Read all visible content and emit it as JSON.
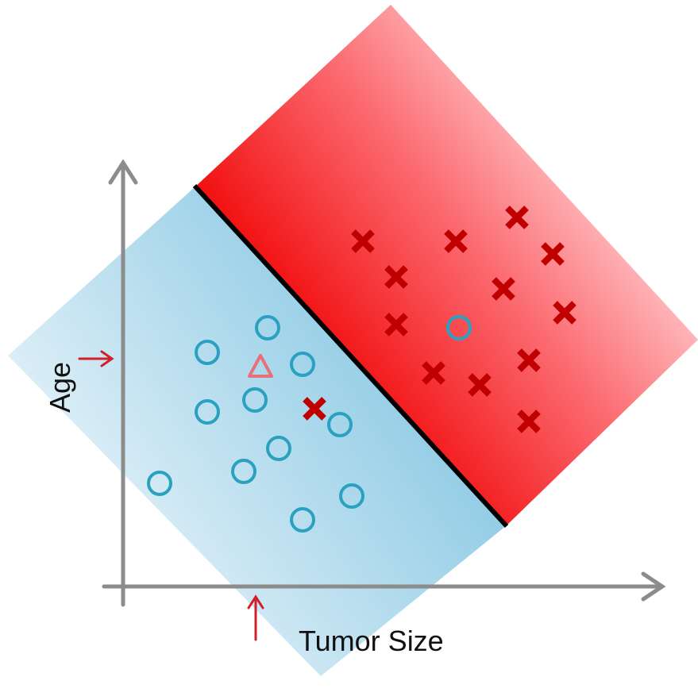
{
  "labels": {
    "x_axis": "Tumor Size",
    "y_axis": "Age"
  },
  "colors": {
    "axis": "#8c8c8c",
    "benign_marker": "#2aa1c0",
    "malignant_marker": "#c00000",
    "query_marker": "#e8707a",
    "pointer_arrow": "#d0202a",
    "boundary": "#000000",
    "benign_region_dark": "#8fcbe5",
    "benign_region_light": "#e2f1f8",
    "malignant_region_dark": "#f00000",
    "malignant_region_light": "#ffd6d8"
  },
  "icons": {
    "benign": "circle-marker",
    "malignant": "cross-marker",
    "query": "triangle-marker"
  }
}
